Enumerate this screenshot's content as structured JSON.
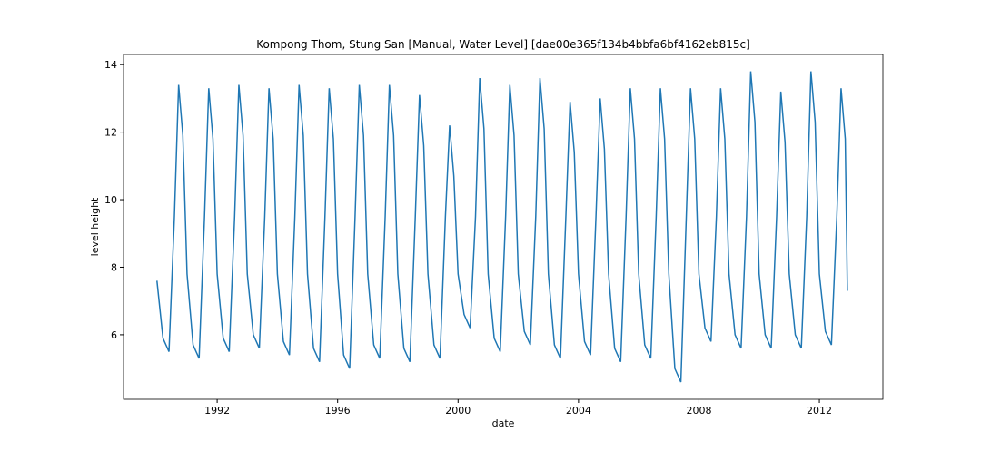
{
  "chart_data": {
    "type": "line",
    "title": "Kompong Thom, Stung San [Manual, Water Level] [dae00e365f134b4bbfa6bf4162eb815c]",
    "x_label": "date",
    "y_label": "level height",
    "color": "#1f77b4",
    "x": [
      1990,
      1990.2,
      1990.4,
      1990.58,
      1990.72,
      1990.86,
      1991,
      1991.2,
      1991.4,
      1991.58,
      1991.72,
      1991.86,
      1992,
      1992.2,
      1992.4,
      1992.58,
      1992.72,
      1992.86,
      1993,
      1993.2,
      1993.4,
      1993.58,
      1993.72,
      1993.86,
      1994,
      1994.2,
      1994.4,
      1994.58,
      1994.72,
      1994.86,
      1995,
      1995.2,
      1995.4,
      1995.58,
      1995.72,
      1995.86,
      1996,
      1996.2,
      1996.4,
      1996.58,
      1996.72,
      1996.86,
      1997,
      1997.2,
      1997.4,
      1997.58,
      1997.72,
      1997.86,
      1998,
      1998.2,
      1998.4,
      1998.58,
      1998.72,
      1998.86,
      1999,
      1999.2,
      1999.4,
      1999.58,
      1999.72,
      1999.86,
      2000,
      2000.2,
      2000.4,
      2000.58,
      2000.72,
      2000.86,
      2001,
      2001.2,
      2001.4,
      2001.58,
      2001.72,
      2001.86,
      2002,
      2002.2,
      2002.4,
      2002.58,
      2002.72,
      2002.86,
      2003,
      2003.2,
      2003.4,
      2003.58,
      2003.72,
      2003.86,
      2004,
      2004.2,
      2004.4,
      2004.58,
      2004.72,
      2004.86,
      2005,
      2005.2,
      2005.4,
      2005.58,
      2005.72,
      2005.86,
      2006,
      2006.2,
      2006.4,
      2006.58,
      2006.72,
      2006.86,
      2007,
      2007.2,
      2007.4,
      2007.58,
      2007.72,
      2007.86,
      2008,
      2008.2,
      2008.4,
      2008.58,
      2008.72,
      2008.86,
      2009,
      2009.2,
      2009.4,
      2009.58,
      2009.72,
      2009.86,
      2010,
      2010.2,
      2010.4,
      2010.58,
      2010.72,
      2010.86,
      2011,
      2011.2,
      2011.4,
      2011.58,
      2011.72,
      2011.86,
      2012,
      2012.2,
      2012.4,
      2012.58,
      2012.72,
      2012.86,
      2012.93
    ],
    "values": [
      7.6,
      5.9,
      5.5,
      9.5,
      13.4,
      11.9,
      7.8,
      5.7,
      5.3,
      9.5,
      13.3,
      11.8,
      7.8,
      5.9,
      5.5,
      9.5,
      13.4,
      11.9,
      7.8,
      6.0,
      5.6,
      9.5,
      13.3,
      11.8,
      7.8,
      5.8,
      5.4,
      9.5,
      13.4,
      11.9,
      7.8,
      5.6,
      5.2,
      9.5,
      13.3,
      11.8,
      7.8,
      5.4,
      5.0,
      9.5,
      13.4,
      11.9,
      7.8,
      5.7,
      5.3,
      9.5,
      13.4,
      11.9,
      7.8,
      5.6,
      5.2,
      9.5,
      13.1,
      11.6,
      7.8,
      5.7,
      5.3,
      9.5,
      12.2,
      10.7,
      7.8,
      6.6,
      6.2,
      9.5,
      13.6,
      12.1,
      7.8,
      5.9,
      5.5,
      9.5,
      13.4,
      11.9,
      7.8,
      6.1,
      5.7,
      9.5,
      13.6,
      12.1,
      7.8,
      5.7,
      5.3,
      9.5,
      12.9,
      11.4,
      7.8,
      5.8,
      5.4,
      9.5,
      13.0,
      11.5,
      7.8,
      5.6,
      5.2,
      9.5,
      13.3,
      11.8,
      7.8,
      5.7,
      5.3,
      9.5,
      13.3,
      11.8,
      7.8,
      5.0,
      4.6,
      9.5,
      13.3,
      11.8,
      7.8,
      6.2,
      5.8,
      9.5,
      13.3,
      11.8,
      7.8,
      6.0,
      5.6,
      9.5,
      13.8,
      12.3,
      7.8,
      6.0,
      5.6,
      9.5,
      13.2,
      11.7,
      7.8,
      6.0,
      5.6,
      9.5,
      13.8,
      12.3,
      7.8,
      6.1,
      5.7,
      9.5,
      13.3,
      11.8,
      7.3
    ],
    "xlim": [
      1988.89,
      2014.11
    ],
    "ylim": [
      4.09,
      14.3
    ],
    "xticks": [
      1992,
      1996,
      2000,
      2004,
      2008,
      2012
    ],
    "yticks": [
      6,
      8,
      10,
      12,
      14
    ],
    "grid": false
  }
}
